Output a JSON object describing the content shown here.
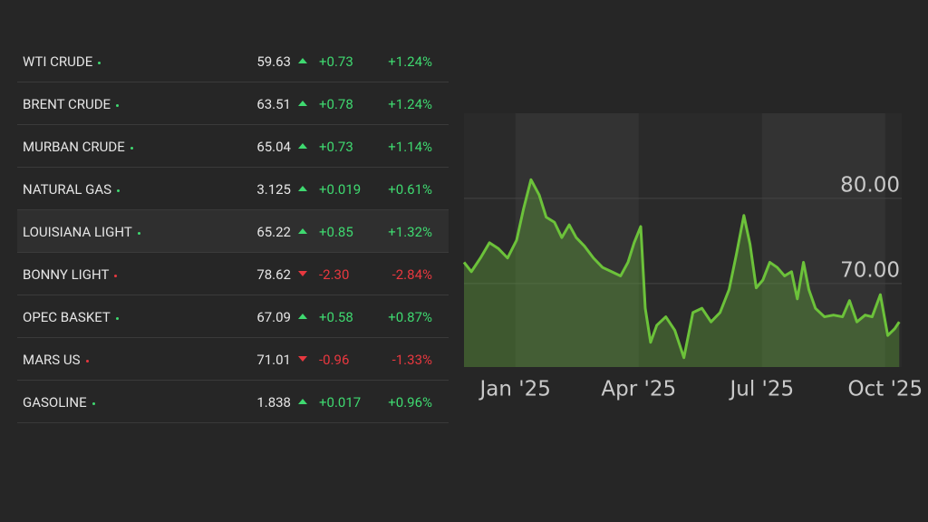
{
  "table": {
    "rows": [
      {
        "name": "WTI CRUDE",
        "last": "59.63",
        "change": "+0.73",
        "percent": "+1.24%"
      },
      {
        "name": "BRENT CRUDE",
        "last": "63.51",
        "change": "+0.78",
        "percent": "+1.24%"
      },
      {
        "name": "MURBAN CRUDE",
        "last": "65.04",
        "change": "+0.73",
        "percent": "+1.14%"
      },
      {
        "name": "NATURAL GAS",
        "last": "3.125",
        "change": "+0.019",
        "percent": "+0.61%"
      },
      {
        "name": "LOUISIANA LIGHT",
        "last": "65.22",
        "change": "+0.85",
        "percent": "+1.32%"
      },
      {
        "name": "BONNY LIGHT",
        "last": "78.62",
        "change": "-2.30",
        "percent": "-2.84%"
      },
      {
        "name": "OPEC BASKET",
        "last": "67.09",
        "change": "+0.58",
        "percent": "+0.87%"
      },
      {
        "name": "MARS US",
        "last": "71.01",
        "change": "-0.96",
        "percent": "-1.33%"
      },
      {
        "name": "GASOLINE",
        "last": "1.838",
        "change": "+0.017",
        "percent": "+0.96%"
      }
    ]
  },
  "chart_data": {
    "type": "area",
    "x": [
      -0.25,
      -0.07,
      0.15,
      0.37,
      0.59,
      0.81,
      1.03,
      1.2,
      1.38,
      1.58,
      1.75,
      1.95,
      2.13,
      2.31,
      2.48,
      2.68,
      2.9,
      3.12,
      3.34,
      3.56,
      3.74,
      3.89,
      4.05,
      4.16,
      4.29,
      4.44,
      4.66,
      4.88,
      5.1,
      5.32,
      5.54,
      5.76,
      5.98,
      6.2,
      6.38,
      6.56,
      6.71,
      6.86,
      7.02,
      7.19,
      7.37,
      7.55,
      7.72,
      7.86,
      8.01,
      8.14,
      8.3,
      8.52,
      8.74,
      8.96,
      9.13,
      9.31,
      9.51,
      9.68,
      9.88,
      10.06,
      10.23,
      10.34
    ],
    "series": [
      {
        "color": "#6cc23a",
        "values": [
          71.0,
          69.9,
          71.5,
          73.3,
          72.6,
          71.5,
          73.6,
          77.3,
          80.7,
          78.9,
          76.3,
          75.7,
          73.9,
          75.4,
          73.9,
          72.9,
          71.5,
          70.4,
          69.9,
          69.4,
          71.0,
          73.3,
          75.2,
          65.6,
          61.6,
          63.6,
          64.6,
          63.0,
          59.8,
          65.1,
          65.6,
          64.0,
          65.1,
          67.8,
          72.0,
          76.5,
          73.1,
          68.0,
          68.9,
          71.0,
          70.4,
          69.4,
          69.9,
          66.7,
          71.0,
          67.8,
          65.6,
          64.6,
          64.8,
          64.6,
          66.5,
          64.0,
          64.8,
          64.6,
          67.2,
          62.4,
          63.2,
          64.0
        ]
      }
    ],
    "xlim": [
      -0.25,
      10.4
    ],
    "xticks": [
      {
        "value": 1,
        "label": "Jan '25"
      },
      {
        "value": 4,
        "label": "Apr '25"
      },
      {
        "value": 7,
        "label": "Jul '25"
      },
      {
        "value": 10,
        "label": "Oct '25"
      }
    ],
    "ylim": [
      58.7,
      88.5
    ],
    "yticks": [
      {
        "value": 70,
        "label": "70.00"
      },
      {
        "value": 80,
        "label": "80.00"
      }
    ],
    "grid": true
  }
}
